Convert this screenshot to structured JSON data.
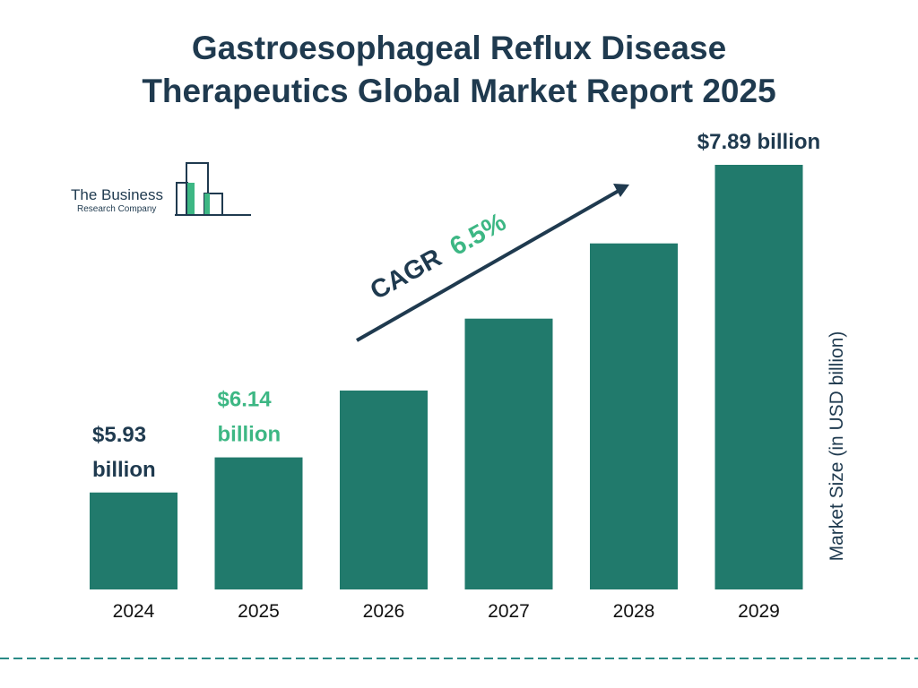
{
  "header": {
    "title_line1": "Gastroesophageal Reflux Disease",
    "title_line2": "Therapeutics Global Market Report 2025"
  },
  "logo": {
    "line1": "The Business",
    "line2": "Research Company"
  },
  "colors": {
    "bar": "#217a6c",
    "title": "#1f3a4f",
    "accent_green": "#3db784",
    "dashed_line": "#2a8a86"
  },
  "chart_data": {
    "type": "bar",
    "categories": [
      "2024",
      "2025",
      "2026",
      "2027",
      "2028",
      "2029"
    ],
    "values": [
      5.93,
      6.14,
      6.54,
      6.97,
      7.42,
      7.89
    ],
    "value_labels": [
      {
        "index": 0,
        "lines": [
          "$5.93",
          "billion"
        ],
        "color": "title"
      },
      {
        "index": 1,
        "lines": [
          "$6.14",
          "billion"
        ],
        "color": "accent_green"
      },
      {
        "index": 5,
        "lines": [
          "$7.89 billion"
        ],
        "color": "title"
      }
    ],
    "ylabel": "Market Size (in USD billion)",
    "cagr_label": "CAGR",
    "cagr_value": "6.5%",
    "ylim": [
      5.35,
      7.89
    ]
  }
}
